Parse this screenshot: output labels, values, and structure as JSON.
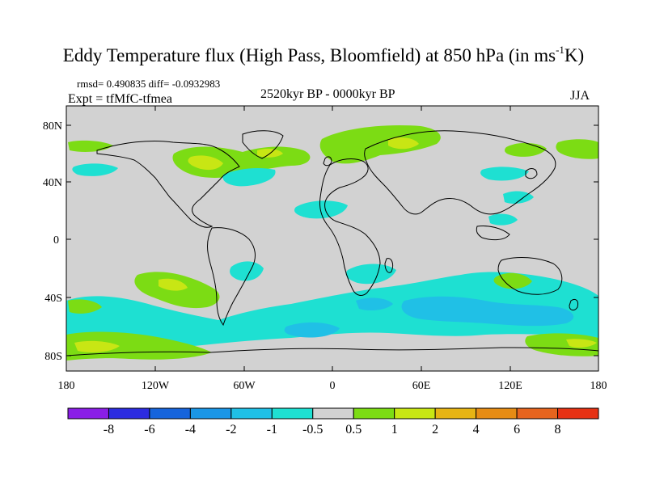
{
  "figure": {
    "title_main": "Eddy Temperature flux (High Pass, Bloomfield) at 850 hPa (in ms",
    "title_sup": "-1",
    "title_end": "K)",
    "stats": "rmsd= 0.490835 diff= -0.0932983",
    "experiment": "Expt = tfMfC-tfmea",
    "period": "2520kyr BP - 0000kyr BP",
    "season": "JJA"
  },
  "axes": {
    "lat_labels": [
      "80N",
      "40N",
      "0",
      "40S",
      "80S"
    ],
    "lon_labels": [
      "180",
      "120W",
      "60W",
      "0",
      "60E",
      "120E",
      "180"
    ]
  },
  "colorbar": {
    "labels": [
      "-8",
      "-6",
      "-4",
      "-2",
      "-1",
      "-0.5",
      "0.5",
      "1",
      "2",
      "4",
      "6",
      "8"
    ],
    "colors": [
      "#8a1ee6",
      "#2c2ce0",
      "#1664dc",
      "#1a96e6",
      "#20c0e6",
      "#1ee0d2",
      "#d2d2d2",
      "#7cdc14",
      "#c8e614",
      "#e6b414",
      "#e68c14",
      "#e6641e",
      "#e63214"
    ]
  },
  "map_regions": [
    {
      "name": "north-atlantic-positive",
      "value": "1",
      "color": "#7cdc14"
    },
    {
      "name": "north-atlantic-core",
      "value": "2",
      "color": "#c8e614"
    },
    {
      "name": "eurasia-positive",
      "value": "1",
      "color": "#7cdc14"
    },
    {
      "name": "north-pacific-positive",
      "value": "1",
      "color": "#7cdc14"
    },
    {
      "name": "subtropical-pacific-negative",
      "value": "-0.5",
      "color": "#1ee0d2"
    },
    {
      "name": "southern-ocean-negative",
      "value": "-0.5",
      "color": "#1ee0d2"
    },
    {
      "name": "southern-ocean-core",
      "value": "-1",
      "color": "#20c0e6"
    },
    {
      "name": "south-pacific-positive",
      "value": "1",
      "color": "#7cdc14"
    },
    {
      "name": "antarctic-positive-core",
      "value": "2",
      "color": "#c8e614"
    }
  ]
}
